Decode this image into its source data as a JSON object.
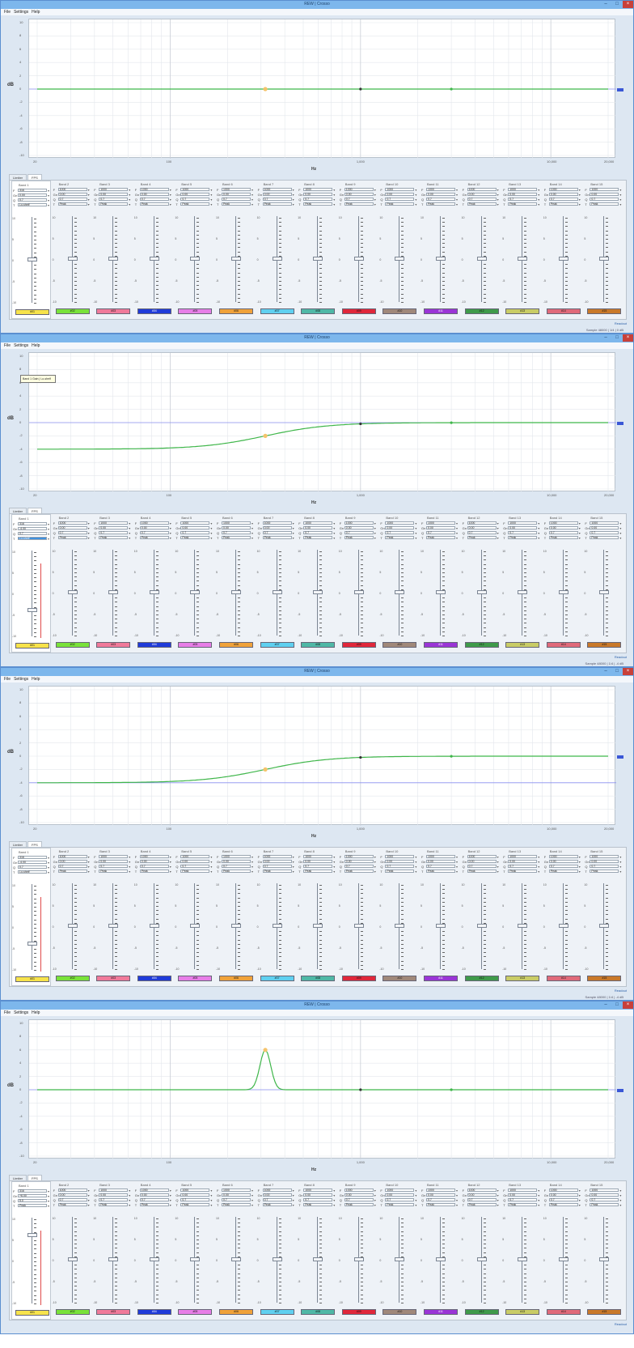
{
  "app": {
    "title": "REW | Crosso",
    "menu": [
      "File",
      "Settings",
      "Help"
    ]
  },
  "axis": {
    "ylabel": "dB",
    "xlabel": "Hz",
    "yticks": [
      "10",
      "8",
      "6",
      "4",
      "2",
      "0",
      "-2",
      "-4",
      "-6",
      "-8",
      "-10"
    ],
    "xticks": [
      "20",
      "100",
      "1,000",
      "10,000",
      "20,000"
    ]
  },
  "tabs": [
    "Limiter",
    "FPS"
  ],
  "bands": [
    {
      "name": "Band 1",
      "color": "#f7e34b",
      "label": "#01"
    },
    {
      "name": "Band 2",
      "color": "#79e23a",
      "label": "#02"
    },
    {
      "name": "Band 3",
      "color": "#f07a9a",
      "label": "#03"
    },
    {
      "name": "Band 4",
      "color": "#1f3bd9",
      "label": "#04"
    },
    {
      "name": "Band 5",
      "color": "#e77ee7",
      "label": "#05"
    },
    {
      "name": "Band 6",
      "color": "#f0a23a",
      "label": "#06"
    },
    {
      "name": "Band 7",
      "color": "#5fd0f0",
      "label": "#07"
    },
    {
      "name": "Band 8",
      "color": "#4fb8a6",
      "label": "#08"
    },
    {
      "name": "Band 9",
      "color": "#e0273a",
      "label": "#09"
    },
    {
      "name": "Band 10",
      "color": "#a0887a",
      "label": "#10"
    },
    {
      "name": "Band 11",
      "color": "#9a35d6",
      "label": "#11"
    },
    {
      "name": "Band 12",
      "color": "#3f9a4a",
      "label": "#12"
    },
    {
      "name": "Band 13",
      "color": "#c9cc66",
      "label": "#13"
    },
    {
      "name": "Band 14",
      "color": "#e06a7a",
      "label": "#14"
    },
    {
      "name": "Band 15",
      "color": "#c9792a",
      "label": "#15"
    }
  ],
  "param_labels": [
    "F",
    "Gn",
    "Q",
    "T"
  ],
  "fader_ticks": [
    "10",
    "5",
    "0",
    "-5",
    "-10"
  ],
  "windows": [
    {
      "curve": "flat",
      "band1_params": [
        "316",
        "0.00",
        "0.7",
        "Lo-shelf"
      ],
      "other_params": [
        "1000",
        "0.00",
        "0.7",
        "Peak"
      ],
      "gain_level_db": 0,
      "selected_band": 0,
      "tooltip": "",
      "status": "Readout",
      "statusbar": "Sample 48000 | 1/4 | 0 dB"
    },
    {
      "curve": "lowshelf_cut",
      "band1_params": [
        "316",
        "-4.00",
        "0.7",
        "Lo-shelf"
      ],
      "other_params": [
        "1000",
        "0.00",
        "0.7",
        "Peak"
      ],
      "gain_level_db": -4,
      "selected_band": 0,
      "tooltip": "Band 1 Gain | Lo-shelf",
      "status": "Readout",
      "statusbar": "Sample 48000 | 1/4 | -4 dB"
    },
    {
      "curve": "lowshelf_cut_lowref",
      "band1_params": [
        "316",
        "-4.00",
        "0.7",
        "Lo-shelf"
      ],
      "other_params": [
        "1000",
        "0.00",
        "0.7",
        "Peak"
      ],
      "gain_level_db": -4,
      "selected_band": 0,
      "tooltip": "",
      "status": "Readout",
      "statusbar": "Sample 48000 | 1/4 | -4 dB"
    },
    {
      "curve": "peak",
      "band1_params": [
        "316",
        "+6.00",
        "5.0",
        "Peak"
      ],
      "other_params": [
        "1000",
        "0.00",
        "0.7",
        "Peak"
      ],
      "gain_level_db": 6,
      "selected_band": 0,
      "tooltip": "",
      "status": "Readout",
      "statusbar": ""
    }
  ]
}
